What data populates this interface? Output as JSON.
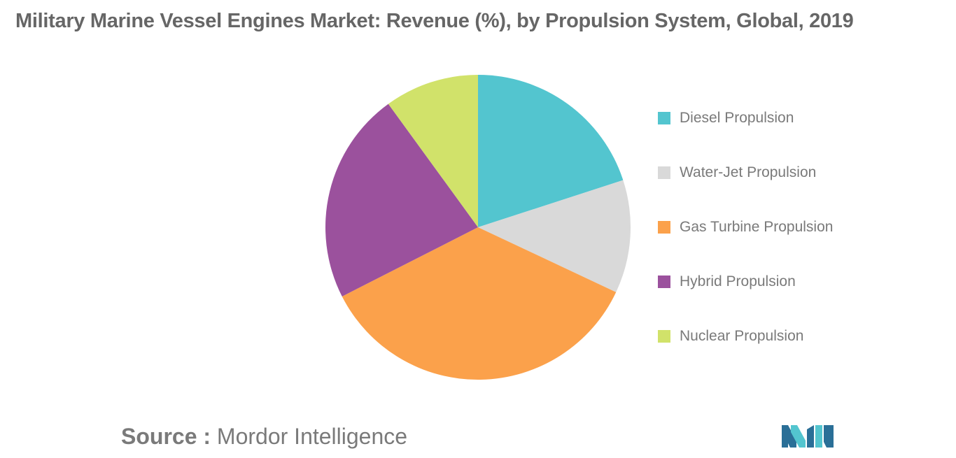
{
  "title": "Military Marine Vessel Engines Market: Revenue (%), by Propulsion System, Global, 2019",
  "source": {
    "prefix": "Source :",
    "name": "Mordor Intelligence"
  },
  "logo": {
    "icon": "mordor-intelligence-logo",
    "colors": [
      "#2a6f97",
      "#53c5cf"
    ]
  },
  "chart_data": {
    "type": "pie",
    "title": "Military Marine Vessel Engines Market: Revenue (%), by Propulsion System, Global, 2019",
    "start_angle": "12 o'clock",
    "direction": "clockwise",
    "legend_position": "right",
    "slices": [
      {
        "label": "Diesel Propulsion",
        "value": 20.0,
        "color": "#53c5cf"
      },
      {
        "label": "Water-Jet Propulsion",
        "value": 12.0,
        "color": "#d9d9d9"
      },
      {
        "label": "Gas Turbine Propulsion",
        "value": 35.5,
        "color": "#fba14b"
      },
      {
        "label": "Hybrid Propulsion",
        "value": 22.5,
        "color": "#9b519d"
      },
      {
        "label": "Nuclear Propulsion",
        "value": 10.0,
        "color": "#d1e26a"
      }
    ]
  }
}
